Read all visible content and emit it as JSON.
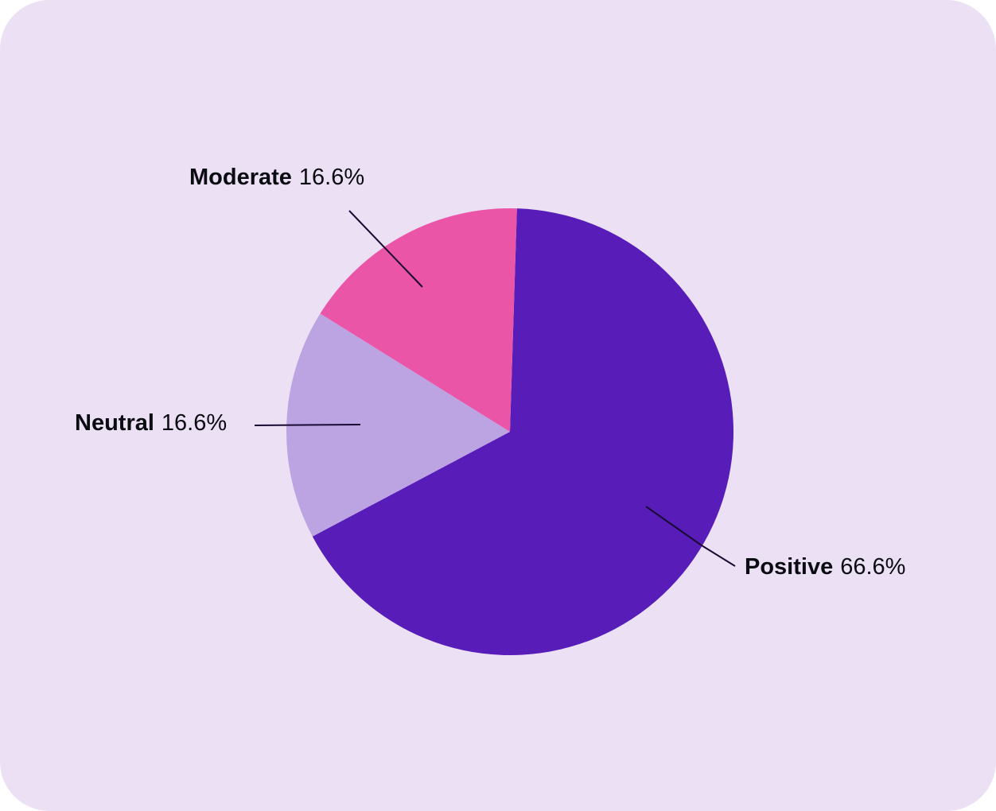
{
  "chart_data": {
    "type": "pie",
    "categories": [
      "Positive",
      "Neutral",
      "Moderate"
    ],
    "values": [
      66.6,
      16.6,
      16.6
    ],
    "value_labels": [
      "66.6%",
      "16.6%",
      "16.6%"
    ],
    "colors": [
      "#581cb9",
      "#bca4e2",
      "#eb55a7"
    ]
  }
}
